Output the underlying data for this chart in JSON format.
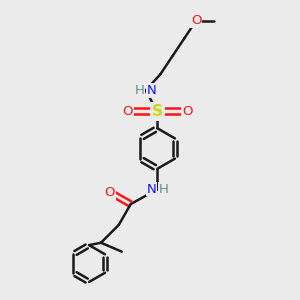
{
  "bg_color": "#ebebeb",
  "bond_color": "#1a1a1a",
  "N_color": "#1414ff",
  "O_color": "#ff1414",
  "S_color": "#d4d400",
  "H_color": "#5f9090",
  "line_width": 1.8,
  "figsize": [
    3.0,
    3.0
  ],
  "dpi": 100,
  "xlim": [
    0,
    10
  ],
  "ylim": [
    0,
    10
  ]
}
